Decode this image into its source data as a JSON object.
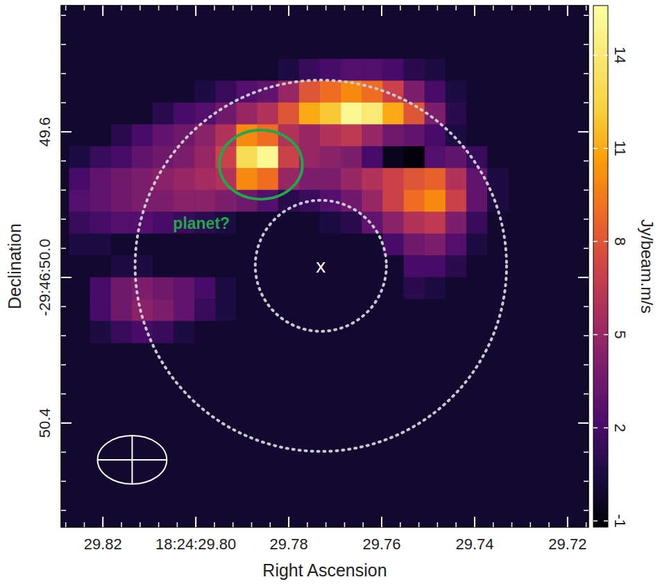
{
  "chart_data": {
    "type": "heatmap",
    "x_label": "Right Ascension",
    "y_label": "Declination",
    "xlim": [
      29.829,
      29.7155
    ],
    "ylim": [
      49.253,
      50.686
    ],
    "xticks": [
      29.82,
      {
        "value": 29.8,
        "label": "18:24:29.80"
      },
      29.78,
      29.76,
      29.74,
      29.72
    ],
    "yticks": [
      49.6,
      {
        "value": 50.0,
        "label": "-29:46:50.0"
      },
      50.4
    ],
    "x": [
      29.825,
      29.8205,
      29.816,
      29.8115,
      29.807,
      29.8025,
      29.798,
      29.7935,
      29.789,
      29.7845,
      29.78,
      29.7755,
      29.771,
      29.7665,
      29.762,
      29.7575,
      29.753,
      29.7485,
      29.744,
      29.7395,
      29.735
    ],
    "y": [
      49.43,
      49.49,
      49.55,
      49.61,
      49.67,
      49.73,
      49.79,
      49.85,
      49.91,
      49.97,
      50.03,
      50.09,
      50.15
    ],
    "cells": [
      [
        0,
        0,
        0,
        0,
        0,
        0,
        0,
        0,
        0,
        0,
        0.5,
        1.5,
        2,
        2.5,
        2.5,
        2,
        1,
        0.5,
        0,
        0,
        0
      ],
      [
        0,
        0,
        0,
        0,
        0,
        0,
        0.5,
        1.5,
        2.5,
        3,
        5,
        8,
        9,
        10,
        9,
        7,
        4,
        2,
        0.5,
        0,
        0
      ],
      [
        0,
        0,
        0,
        0,
        1,
        2,
        2.5,
        3.5,
        5,
        6,
        8,
        11,
        12,
        15,
        14,
        11,
        8,
        4,
        1,
        0,
        0
      ],
      [
        0,
        0,
        1,
        2,
        3,
        3.5,
        4.5,
        6,
        10,
        9,
        6,
        5,
        6,
        6.5,
        5,
        3.5,
        3,
        2,
        0.5,
        0,
        0
      ],
      [
        0.5,
        1.5,
        2,
        3,
        3.5,
        4,
        5,
        7,
        13,
        15,
        7,
        5,
        4.5,
        4,
        2,
        -0.5,
        -1,
        2.5,
        3,
        1.5,
        0
      ],
      [
        2,
        3,
        3.5,
        4,
        4.5,
        5,
        5.5,
        6,
        10,
        9,
        5,
        4,
        4,
        5,
        6,
        7,
        8,
        8.5,
        6,
        3,
        0.5
      ],
      [
        2.5,
        3,
        3.5,
        4,
        4,
        4.5,
        4.5,
        4,
        3.5,
        2.5,
        1,
        1.5,
        2.5,
        3.5,
        5,
        7,
        9,
        10,
        7,
        3,
        0.5
      ],
      [
        1.5,
        2,
        2.5,
        2.5,
        2,
        1.5,
        1,
        0.5,
        0,
        0,
        0,
        0,
        0.5,
        1,
        3,
        4.5,
        6,
        6.5,
        4,
        1.5,
        0
      ],
      [
        0.5,
        0.5,
        0,
        0,
        0,
        0,
        0,
        0,
        0,
        0,
        0,
        0,
        0,
        0,
        0,
        2,
        3.5,
        4,
        2.5,
        0.5,
        0
      ],
      [
        0,
        0,
        0.5,
        0.5,
        0,
        0,
        0,
        0,
        0,
        0,
        0,
        0,
        0,
        0,
        0,
        0,
        2,
        2,
        1,
        0,
        0
      ],
      [
        0,
        2,
        3.5,
        4,
        3.5,
        3,
        2,
        0.5,
        0,
        0,
        0,
        0,
        0,
        0,
        0,
        0,
        1,
        0.5,
        0,
        0,
        0
      ],
      [
        0,
        2,
        3.5,
        4.5,
        4,
        3,
        1.5,
        0.5,
        0,
        0,
        0,
        0,
        0,
        0,
        0,
        0,
        0,
        0,
        0,
        0,
        0
      ],
      [
        0,
        0.5,
        1.5,
        2,
        1.5,
        0.5,
        0,
        0,
        0,
        0,
        0,
        0,
        0,
        0,
        0,
        0,
        0,
        0,
        0,
        0,
        0
      ]
    ],
    "colorbar_label": "Jy/beam.m/s",
    "clim": [
      -1.2,
      15.6
    ],
    "cticks": [
      -1,
      2,
      5,
      8,
      11,
      14
    ],
    "star": {
      "x": 29.7731,
      "y": 49.968,
      "label": "x"
    },
    "circles": [
      {
        "x": 29.7731,
        "y": 49.968,
        "r": 0.18,
        "line_style": "dotted"
      },
      {
        "x": 29.7731,
        "y": 49.968,
        "r": 0.51,
        "line_style": "dotted"
      }
    ],
    "beam": {
      "x": 29.8137,
      "y": 50.501,
      "major": 0.19,
      "minor": 0.133
    },
    "planet": {
      "text": "planet?",
      "x": 29.786,
      "y": 49.69,
      "rx": 0.114,
      "ry": 0.095,
      "text_x": 29.7988,
      "text_y": 49.851,
      "color": "#1fa84a"
    }
  }
}
